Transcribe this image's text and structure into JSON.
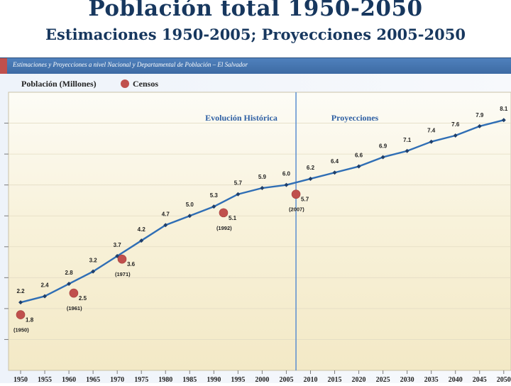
{
  "slide": {
    "title": "Población total 1950-2050",
    "subtitle": "Estimaciones 1950-2005; Proyecciones 2005-2050",
    "banner": "Estimaciones y Proyecciones a nivel Nacional y Departamental de Población – El Salvador"
  },
  "colors": {
    "title": "#17375e",
    "line": "#2f6eb5",
    "census": "#c0504d",
    "banner": "#4f81bd"
  },
  "chart_data": {
    "type": "line",
    "ylabel": "Población (Millones)",
    "legend": [
      "Censos"
    ],
    "x": [
      1950,
      1955,
      1960,
      1965,
      1970,
      1975,
      1980,
      1985,
      1990,
      1995,
      2000,
      2005,
      2010,
      2015,
      2020,
      2025,
      2030,
      2035,
      2040,
      2045,
      2050
    ],
    "series": [
      {
        "name": "Población total",
        "values": [
          2.2,
          2.4,
          2.8,
          3.2,
          3.7,
          4.2,
          4.7,
          5.0,
          5.3,
          5.7,
          5.9,
          6.0,
          6.2,
          6.4,
          6.6,
          6.9,
          7.1,
          7.4,
          7.6,
          7.9,
          8.1
        ]
      }
    ],
    "census": [
      {
        "year": 1950,
        "value": 1.8,
        "label": "(1950)"
      },
      {
        "year": 1961,
        "value": 2.5,
        "label": "(1961)"
      },
      {
        "year": 1971,
        "value": 3.6,
        "label": "(1971)"
      },
      {
        "year": 1992,
        "value": 5.1,
        "label": "(1992)"
      },
      {
        "year": 2007,
        "value": 5.7,
        "label": "(2007)"
      }
    ],
    "regions": {
      "historic": "Evolución Histórica",
      "projection": "Proyecciones",
      "divider_year": 2007
    },
    "ylim": [
      0,
      9.0
    ],
    "xlim": [
      1947.5,
      2051.5
    ]
  }
}
